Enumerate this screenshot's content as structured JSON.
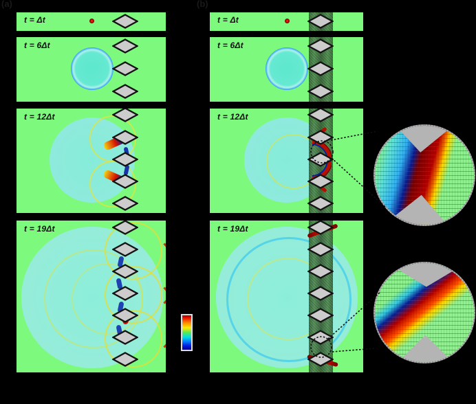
{
  "figure": {
    "caption_letters": {
      "a": "(a)",
      "b": "(b)"
    },
    "time_labels": [
      "t = Δt",
      "t = 6Δt",
      "t = 12Δt",
      "t = 19Δt"
    ],
    "rows_scatterer_counts": [
      1,
      3,
      5,
      7
    ],
    "colorbar": {
      "colormap": "jet",
      "orientation": "vertical",
      "top_color": "#e01000",
      "bottom_color": "#000090"
    },
    "colors": {
      "background": "#000000",
      "plate_green": "#7dfa7d",
      "metamaterial_strip_green": "#4f8b4f",
      "scatterer_fill": "#cccccc",
      "scatterer_stroke": "#141414",
      "wavefront_red": "#d01400",
      "wavefront_blue": "#0a1f9e",
      "wave_interior_cyan": "#8feadc",
      "inset_gray": "#b4b4b4"
    }
  }
}
